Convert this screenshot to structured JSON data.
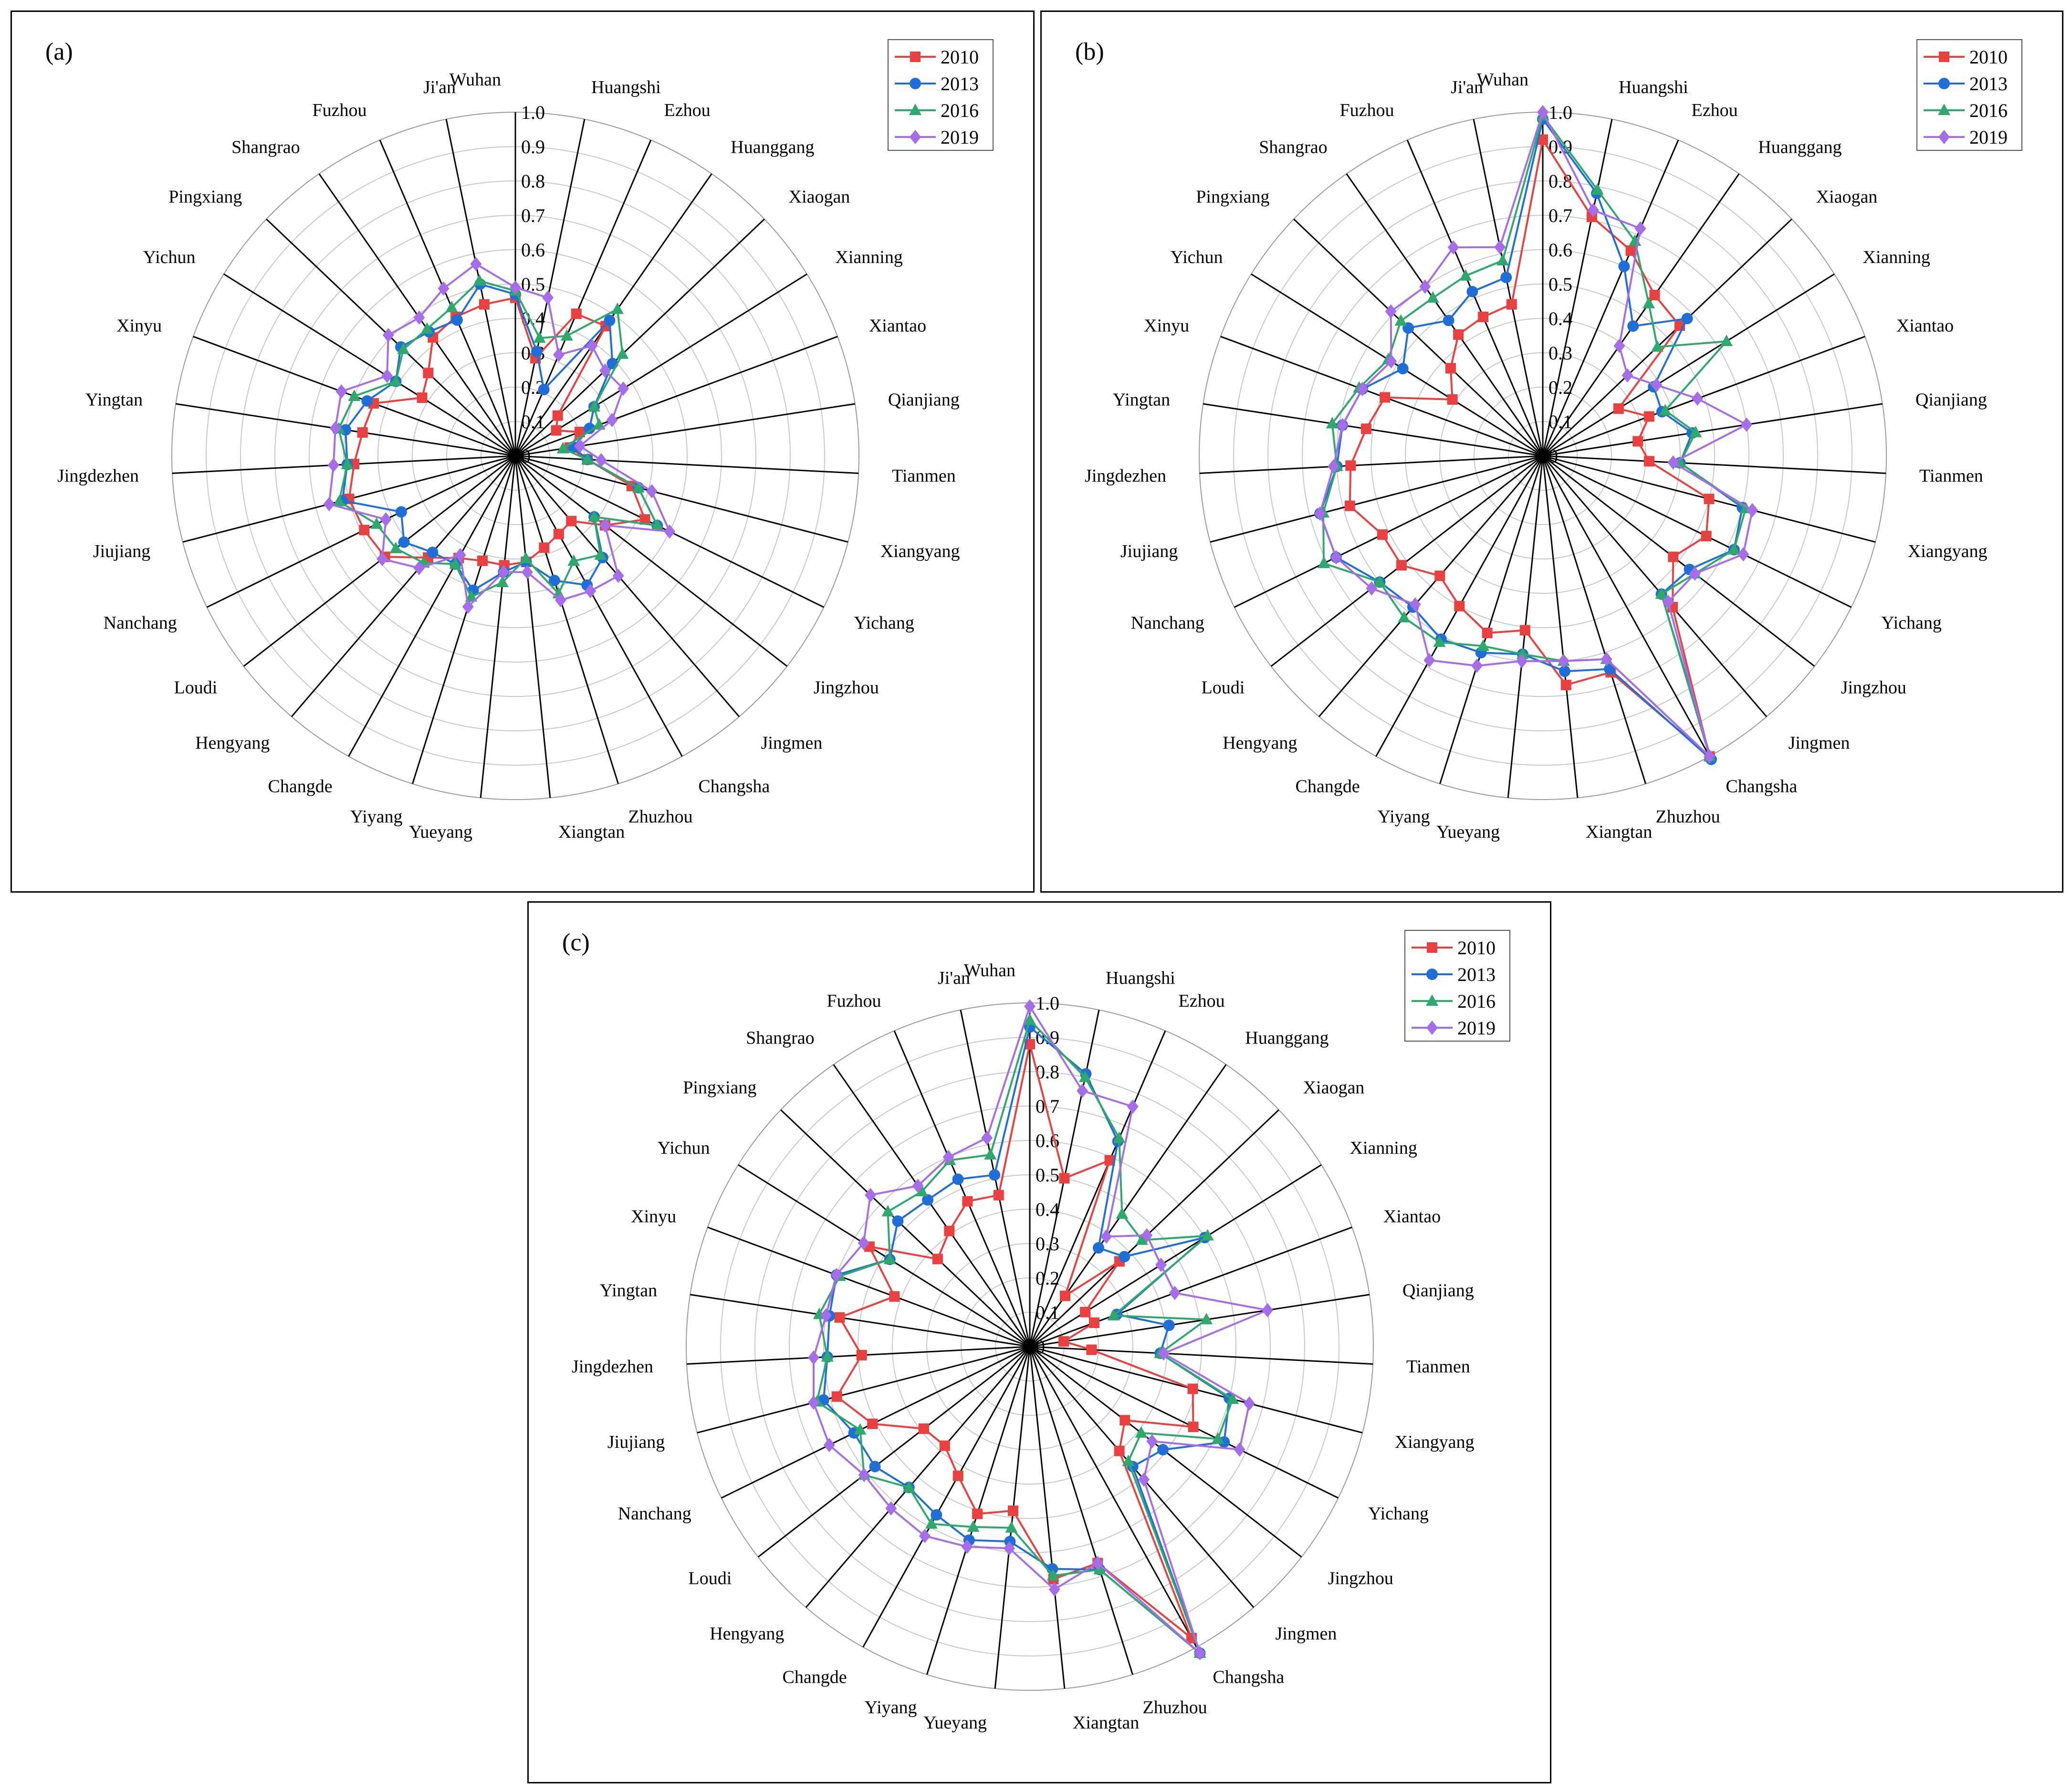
{
  "figure": {
    "series_colors": {
      "2010": "#e8413f",
      "2013": "#1f6fd6",
      "2016": "#2ea86c",
      "2019": "#a56ee6"
    }
  },
  "chart_data": [
    {
      "type": "radar",
      "panel_label": "(a)",
      "categories": [
        "Wuhan",
        "Huangshi",
        "Ezhou",
        "Huanggang",
        "Xiaogan",
        "Xianning",
        "Xiantao",
        "Qianjiang",
        "Tianmen",
        "Xiangyang",
        "Yichang",
        "Jingzhou",
        "Jingmen",
        "Changsha",
        "Zhuzhou",
        "Xiangtan",
        "Yueyang",
        "Yiyang",
        "Changde",
        "Hengyang",
        "Loudi",
        "Nanchang",
        "Jiujiang",
        "Jingdezhen",
        "Yingtan",
        "Xinyu",
        "Yichun",
        "Pingxiang",
        "Shangrao",
        "Fuzhou",
        "Ji'an"
      ],
      "radial_ticks": [
        "0",
        "0.1",
        "0.2",
        "0.3",
        "0.4",
        "0.5",
        "0.6",
        "0.7",
        "0.8",
        "0.9",
        "1.0"
      ],
      "rlim": [
        0,
        1.0
      ],
      "legend": [
        "2010",
        "2013",
        "2016",
        "2019"
      ],
      "series": [
        {
          "name": "2010",
          "values": [
            0.46,
            0.29,
            0.45,
            0.46,
            0.17,
            0.14,
            0.2,
            0.16,
            0.21,
            0.35,
            0.42,
            0.33,
            0.25,
            0.26,
            0.28,
            0.31,
            0.32,
            0.32,
            0.34,
            0.39,
            0.48,
            0.49,
            0.5,
            0.47,
            0.45,
            0.44,
            0.32,
            0.35,
            0.42,
            0.44,
            0.45
          ]
        },
        {
          "name": "2013",
          "values": [
            0.47,
            0.31,
            0.21,
            0.48,
            0.39,
            0.27,
            0.23,
            0.17,
            0.21,
            0.37,
            0.46,
            0.29,
            0.39,
            0.43,
            0.38,
            0.31,
            0.34,
            0.41,
            0.36,
            0.37,
            0.41,
            0.37,
            0.52,
            0.49,
            0.5,
            0.46,
            0.41,
            0.46,
            0.44,
            0.43,
            0.51
          ]
        },
        {
          "name": "2016",
          "values": [
            0.48,
            0.35,
            0.38,
            0.52,
            0.43,
            0.27,
            0.26,
            0.14,
            0.21,
            0.37,
            0.46,
            0.29,
            0.38,
            0.35,
            0.42,
            0.3,
            0.37,
            0.43,
            0.36,
            0.41,
            0.44,
            0.45,
            0.53,
            0.49,
            0.52,
            0.5,
            0.41,
            0.45,
            0.45,
            0.47,
            0.52
          ]
        },
        {
          "name": "2019",
          "values": [
            0.49,
            0.47,
            0.32,
            0.39,
            0.36,
            0.37,
            0.3,
            0.19,
            0.25,
            0.41,
            0.5,
            0.33,
            0.46,
            0.45,
            0.44,
            0.34,
            0.34,
            0.46,
            0.33,
            0.43,
            0.49,
            0.42,
            0.56,
            0.53,
            0.53,
            0.54,
            0.44,
            0.51,
            0.49,
            0.53,
            0.57
          ]
        }
      ]
    },
    {
      "type": "radar",
      "panel_label": "(b)",
      "categories": [
        "Wuhan",
        "Huangshi",
        "Ezhou",
        "Huanggang",
        "Xiaogan",
        "Xianning",
        "Xiantao",
        "Qianjiang",
        "Tianmen",
        "Xiangyang",
        "Yichang",
        "Jingzhou",
        "Jingmen",
        "Changsha",
        "Zhuzhou",
        "Xiangtan",
        "Yueyang",
        "Yiyang",
        "Changde",
        "Hengyang",
        "Loudi",
        "Nanchang",
        "Jiujiang",
        "Jingdezhen",
        "Yingtan",
        "Xinyu",
        "Yichun",
        "Pingxiang",
        "Shangrao",
        "Fuzhou",
        "Ji'an"
      ],
      "radial_ticks": [
        "0",
        "0.1",
        "0.2",
        "0.3",
        "0.4",
        "0.5",
        "0.6",
        "0.7",
        "0.8",
        "0.9",
        "1.0"
      ],
      "rlim": [
        0,
        1.0
      ],
      "legend": [
        "2010",
        "2013",
        "2016",
        "2019"
      ],
      "series": [
        {
          "name": "2010",
          "values": [
            0.92,
            0.71,
            0.65,
            0.57,
            0.55,
            0.26,
            0.33,
            0.28,
            0.31,
            0.5,
            0.53,
            0.48,
            0.58,
            1.0,
            0.66,
            0.67,
            0.51,
            0.54,
            0.5,
            0.46,
            0.52,
            0.52,
            0.58,
            0.56,
            0.52,
            0.49,
            0.31,
            0.37,
            0.43,
            0.44,
            0.45
          ]
        },
        {
          "name": "2013",
          "values": [
            0.98,
            0.78,
            0.6,
            0.46,
            0.58,
            0.38,
            0.37,
            0.44,
            0.4,
            0.6,
            0.62,
            0.54,
            0.53,
            1.01,
            0.65,
            0.63,
            0.58,
            0.6,
            0.61,
            0.58,
            0.6,
            0.67,
            0.67,
            0.6,
            0.59,
            0.56,
            0.48,
            0.54,
            0.48,
            0.52,
            0.53
          ]
        },
        {
          "name": "2016",
          "values": [
            0.99,
            0.79,
            0.68,
            0.54,
            0.46,
            0.63,
            0.38,
            0.45,
            0.4,
            0.61,
            0.62,
            0.56,
            0.53,
            1.0,
            0.62,
            0.6,
            0.58,
            0.58,
            0.62,
            0.62,
            0.6,
            0.71,
            0.66,
            0.6,
            0.62,
            0.57,
            0.53,
            0.57,
            0.56,
            0.57,
            0.58
          ]
        },
        {
          "name": "2019",
          "values": [
            1.0,
            0.73,
            0.72,
            0.39,
            0.34,
            0.39,
            0.48,
            0.6,
            0.38,
            0.63,
            0.65,
            0.56,
            0.56,
            1.0,
            0.62,
            0.6,
            0.6,
            0.64,
            0.68,
            0.57,
            0.63,
            0.67,
            0.67,
            0.61,
            0.59,
            0.56,
            0.52,
            0.61,
            0.6,
            0.66,
            0.62
          ]
        }
      ]
    },
    {
      "type": "radar",
      "panel_label": "(c)",
      "categories": [
        "Wuhan",
        "Huangshi",
        "Ezhou",
        "Huanggang",
        "Xiaogan",
        "Xianning",
        "Xiantao",
        "Qianjiang",
        "Tianmen",
        "Xiangyang",
        "Yichang",
        "Jingzhou",
        "Jingmen",
        "Changsha",
        "Zhuzhou",
        "Xiangtan",
        "Yueyang",
        "Yiyang",
        "Changde",
        "Hengyang",
        "Loudi",
        "Nanchang",
        "Jiujiang",
        "Jingdezhen",
        "Yingtan",
        "Xinyu",
        "Yichun",
        "Pingxiang",
        "Shangrao",
        "Fuzhou",
        "Ji'an"
      ],
      "radial_ticks": [
        "0",
        "0.1",
        "0.2",
        "0.3",
        "0.4",
        "0.5",
        "0.6",
        "0.7",
        "0.8",
        "0.9",
        "1.0"
      ],
      "rlim": [
        0,
        1.0
      ],
      "legend": [
        "2010",
        "2013",
        "2016",
        "2019"
      ],
      "series": [
        {
          "name": "2010",
          "values": [
            0.88,
            0.5,
            0.59,
            0.18,
            0.36,
            0.19,
            0.2,
            0.1,
            0.18,
            0.49,
            0.53,
            0.35,
            0.4,
            0.97,
            0.66,
            0.68,
            0.48,
            0.51,
            0.43,
            0.38,
            0.39,
            0.51,
            0.58,
            0.49,
            0.56,
            0.42,
            0.55,
            0.37,
            0.41,
            0.46,
            0.45
          ]
        },
        {
          "name": "2013",
          "values": [
            0.93,
            0.81,
            0.65,
            0.35,
            0.38,
            0.6,
            0.27,
            0.41,
            0.38,
            0.6,
            0.63,
            0.49,
            0.46,
            1.02,
            0.68,
            0.65,
            0.57,
            0.59,
            0.56,
            0.54,
            0.57,
            0.57,
            0.62,
            0.59,
            0.59,
            0.6,
            0.48,
            0.53,
            0.52,
            0.53,
            0.51
          ]
        },
        {
          "name": "2016",
          "values": [
            0.95,
            0.8,
            0.66,
            0.47,
            0.45,
            0.61,
            0.26,
            0.52,
            0.38,
            0.61,
            0.61,
            0.41,
            0.44,
            1.02,
            0.68,
            0.67,
            0.53,
            0.55,
            0.59,
            0.54,
            0.61,
            0.55,
            0.64,
            0.59,
            0.62,
            0.59,
            0.48,
            0.57,
            0.55,
            0.59,
            0.57
          ]
        },
        {
          "name": "2019",
          "values": [
            0.99,
            0.76,
            0.76,
            0.39,
            0.47,
            0.45,
            0.45,
            0.7,
            0.39,
            0.66,
            0.68,
            0.45,
            0.51,
            1.02,
            0.66,
            0.71,
            0.59,
            0.61,
            0.63,
            0.62,
            0.61,
            0.65,
            0.65,
            0.63,
            0.6,
            0.6,
            0.57,
            0.64,
            0.57,
            0.6,
            0.62
          ]
        }
      ]
    }
  ]
}
